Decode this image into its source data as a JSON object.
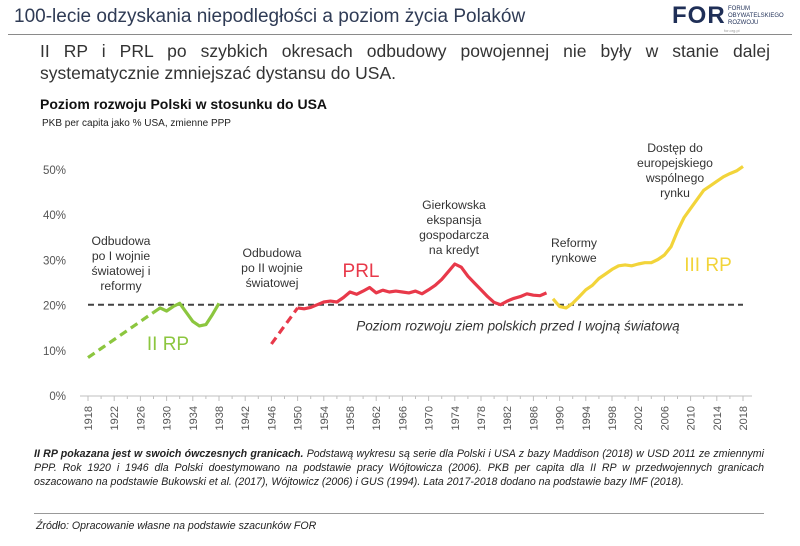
{
  "header": {
    "title": "100-lecie odzyskania niepodległości a poziom życia Polaków",
    "logo_text": "FOR",
    "logo_subtext": "FORUM OBYWATELSKIEGO ROZWOJU",
    "logo_url": "for.org.pl"
  },
  "lead": "II RP i PRL po szybkich okresach odbudowy powojennej nie były w stanie dalej systematycznie zmniejszać dystansu do USA.",
  "chart_data": {
    "type": "line",
    "title": "Poziom rozwoju Polski w stosunku do USA",
    "subtitle": "PKB per capita jako % USA, zmienne PPP",
    "xlim": [
      1918,
      2018
    ],
    "ylim": [
      0,
      50
    ],
    "x_ticks": [
      1918,
      1922,
      1926,
      1930,
      1934,
      1938,
      1942,
      1946,
      1950,
      1954,
      1958,
      1962,
      1966,
      1970,
      1974,
      1978,
      1982,
      1986,
      1990,
      1994,
      1998,
      2002,
      2006,
      2010,
      2014,
      2018
    ],
    "y_ticks": [
      {
        "value": 0,
        "label": "0%"
      },
      {
        "value": 10,
        "label": "10%"
      },
      {
        "value": 20,
        "label": "20%"
      },
      {
        "value": 30,
        "label": "30%"
      },
      {
        "value": 40,
        "label": "40%"
      },
      {
        "value": 50,
        "label": "50%"
      }
    ],
    "grid": false,
    "series": [
      {
        "name": "II RP",
        "color": "#8cc63f",
        "segments": [
          {
            "style": "dashed",
            "points": [
              [
                1918,
                8.5
              ],
              [
                1920,
                10.5
              ],
              [
                1922,
                12.5
              ],
              [
                1924,
                14.5
              ],
              [
                1926,
                16.5
              ],
              [
                1928,
                18.5
              ]
            ]
          },
          {
            "style": "solid",
            "points": [
              [
                1928,
                18.5
              ],
              [
                1929,
                19.5
              ],
              [
                1930,
                18.8
              ],
              [
                1931,
                19.8
              ],
              [
                1932,
                20.5
              ],
              [
                1933,
                18.5
              ],
              [
                1934,
                16.5
              ],
              [
                1935,
                15.5
              ],
              [
                1936,
                15.8
              ],
              [
                1937,
                18.0
              ],
              [
                1938,
                20.5
              ]
            ]
          }
        ]
      },
      {
        "name": "PRL",
        "color": "#e8394a",
        "segments": [
          {
            "style": "dashed",
            "points": [
              [
                1946,
                11.5
              ],
              [
                1947,
                13.5
              ],
              [
                1948,
                15.5
              ],
              [
                1949,
                17.5
              ],
              [
                1950,
                19.5
              ]
            ]
          },
          {
            "style": "solid",
            "points": [
              [
                1950,
                19.5
              ],
              [
                1951,
                19.3
              ],
              [
                1952,
                19.6
              ],
              [
                1953,
                20.2
              ],
              [
                1954,
                20.8
              ],
              [
                1955,
                21.0
              ],
              [
                1956,
                20.8
              ],
              [
                1957,
                21.8
              ],
              [
                1958,
                23.0
              ],
              [
                1959,
                22.5
              ],
              [
                1960,
                23.2
              ],
              [
                1961,
                24.0
              ],
              [
                1962,
                22.8
              ],
              [
                1963,
                23.4
              ],
              [
                1964,
                23.0
              ],
              [
                1965,
                23.2
              ],
              [
                1966,
                23.0
              ],
              [
                1967,
                22.8
              ],
              [
                1968,
                23.2
              ],
              [
                1969,
                22.6
              ],
              [
                1970,
                23.5
              ],
              [
                1971,
                24.5
              ],
              [
                1972,
                25.8
              ],
              [
                1973,
                27.5
              ],
              [
                1974,
                29.2
              ],
              [
                1975,
                28.5
              ],
              [
                1976,
                26.5
              ],
              [
                1977,
                25.0
              ],
              [
                1978,
                23.5
              ],
              [
                1979,
                22.0
              ],
              [
                1980,
                20.7
              ],
              [
                1981,
                20.2
              ],
              [
                1982,
                21.0
              ],
              [
                1983,
                21.6
              ],
              [
                1984,
                22.0
              ],
              [
                1985,
                22.6
              ],
              [
                1986,
                22.3
              ],
              [
                1987,
                22.2
              ],
              [
                1988,
                22.8
              ]
            ]
          }
        ]
      },
      {
        "name": "III RP",
        "color": "#f2d43a",
        "segments": [
          {
            "style": "solid",
            "points": [
              [
                1989,
                21.5
              ],
              [
                1990,
                19.8
              ],
              [
                1991,
                19.5
              ],
              [
                1992,
                20.5
              ],
              [
                1993,
                22.0
              ],
              [
                1994,
                23.5
              ],
              [
                1995,
                24.5
              ],
              [
                1996,
                26.0
              ],
              [
                1997,
                27.0
              ],
              [
                1998,
                28.0
              ],
              [
                1999,
                28.8
              ],
              [
                2000,
                29.0
              ],
              [
                2001,
                28.8
              ],
              [
                2002,
                29.2
              ],
              [
                2003,
                29.5
              ],
              [
                2004,
                29.5
              ],
              [
                2005,
                30.2
              ],
              [
                2006,
                31.2
              ],
              [
                2007,
                33.0
              ],
              [
                2008,
                36.5
              ],
              [
                2009,
                39.5
              ],
              [
                2010,
                41.5
              ],
              [
                2011,
                43.5
              ],
              [
                2012,
                45.5
              ],
              [
                2013,
                46.5
              ],
              [
                2014,
                47.5
              ],
              [
                2015,
                48.5
              ],
              [
                2016,
                49.2
              ],
              [
                2017,
                49.8
              ],
              [
                2018,
                50.8
              ]
            ]
          }
        ]
      }
    ],
    "reference_line": {
      "y": 20.2,
      "label": "Poziom rozwoju ziem polskich przed I wojną światową",
      "color": "#444444"
    },
    "annotations": [
      {
        "id": "ann1",
        "lines": [
          "Odbudowa",
          "po I wojnie",
          "światowej i",
          "reformy"
        ]
      },
      {
        "id": "ann2",
        "lines": [
          "Odbudowa",
          "po II wojnie",
          "światowej"
        ]
      },
      {
        "id": "ann3",
        "lines": [
          "Gierkowska",
          "ekspansja",
          "gospodarcza",
          "na kredyt"
        ]
      },
      {
        "id": "ann4",
        "lines": [
          "Reformy",
          "rynkowe"
        ]
      },
      {
        "id": "ann5",
        "lines": [
          "Dostęp do",
          "europejskiego",
          "wspólnego",
          "rynku"
        ]
      }
    ]
  },
  "footnote": {
    "bold": "II RP pokazana jest w swoich ówczesnych granicach.",
    "text": " Podstawą wykresu są serie dla Polski i USA z bazy Maddison (2018) w USD 2011 ze zmiennymi PPP. Rok 1920 i 1946 dla Polski doestymowano na podstawie pracy Wójtowicza (2006). PKB per capita dla II RP w przedwojennych granicach oszacowano na podstawie Bukowski et al. (2017), Wójtowicz (2006) i GUS (1994). Lata 2017-2018 dodano na podstawie bazy IMF (2018)."
  },
  "source": "Źródło: Opracowanie własne na podstawie szacunków FOR"
}
